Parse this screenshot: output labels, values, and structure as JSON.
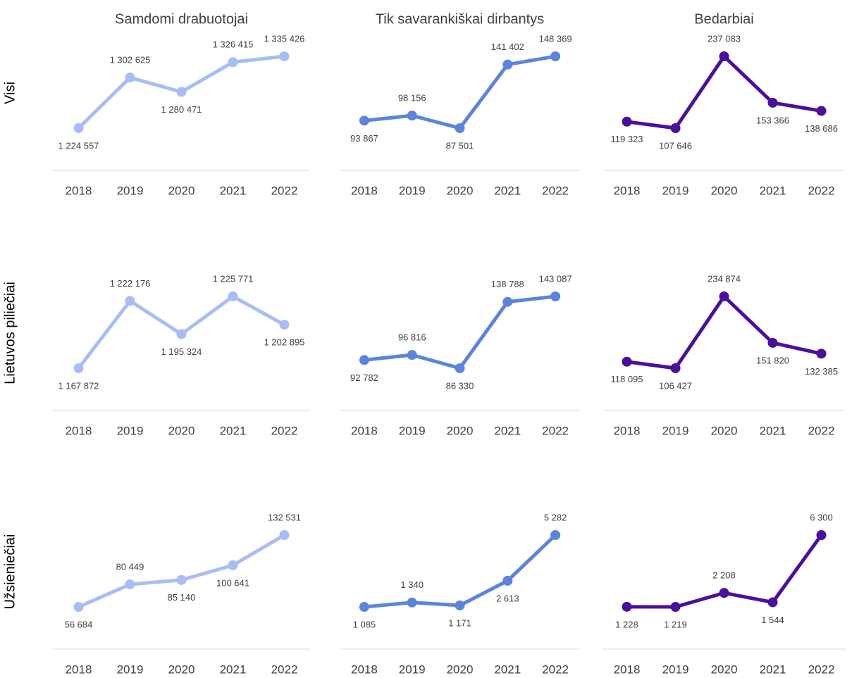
{
  "columns": [
    "Samdomi drabuotojai",
    "Tik savarankiškai dirbantys",
    "Bedarbiai"
  ],
  "rows": [
    "Visi",
    "Lietuvos piliečiai",
    "Užsieniečiai"
  ],
  "chart_data": [
    {
      "type": "line",
      "categories": [
        "2018",
        "2019",
        "2020",
        "2021",
        "2022"
      ],
      "color": "#a9bdf5",
      "values": [
        1224557,
        1302625,
        1280471,
        1326415,
        1335426
      ],
      "value_labels": [
        "1 224 557",
        "1 302 625",
        "1 280 471",
        "1 326 415",
        "1 335 426"
      ]
    },
    {
      "type": "line",
      "categories": [
        "2018",
        "2019",
        "2020",
        "2021",
        "2022"
      ],
      "color": "#5b84dc",
      "values": [
        93867,
        98156,
        87501,
        141402,
        148369
      ],
      "value_labels": [
        "93 867",
        "98 156",
        "87 501",
        "141 402",
        "148 369"
      ]
    },
    {
      "type": "line",
      "categories": [
        "2018",
        "2019",
        "2020",
        "2021",
        "2022"
      ],
      "color": "#4b0f9e",
      "values": [
        119323,
        107646,
        237083,
        153366,
        138686
      ],
      "value_labels": [
        "119 323",
        "107 646",
        "237 083",
        "153 366",
        "138 686"
      ]
    },
    {
      "type": "line",
      "categories": [
        "2018",
        "2019",
        "2020",
        "2021",
        "2022"
      ],
      "color": "#a9bdf5",
      "values": [
        1167872,
        1222176,
        1195324,
        1225771,
        1202895
      ],
      "value_labels": [
        "1 167 872",
        "1 222 176",
        "1 195 324",
        "1 225 771",
        "1 202 895"
      ]
    },
    {
      "type": "line",
      "categories": [
        "2018",
        "2019",
        "2020",
        "2021",
        "2022"
      ],
      "color": "#5b84dc",
      "values": [
        92782,
        96816,
        86330,
        138788,
        143087
      ],
      "value_labels": [
        "92 782",
        "96 816",
        "86 330",
        "138 788",
        "143 087"
      ]
    },
    {
      "type": "line",
      "categories": [
        "2018",
        "2019",
        "2020",
        "2021",
        "2022"
      ],
      "color": "#4b0f9e",
      "values": [
        118095,
        106427,
        234874,
        151820,
        132385
      ],
      "value_labels": [
        "118 095",
        "106 427",
        "234 874",
        "151 820",
        "132 385"
      ]
    },
    {
      "type": "line",
      "categories": [
        "2018",
        "2019",
        "2020",
        "2021",
        "2022"
      ],
      "color": "#a9bdf5",
      "values": [
        56684,
        80449,
        85140,
        100641,
        132531
      ],
      "value_labels": [
        "56 684",
        "80 449",
        "85 140",
        "100 641",
        "132 531"
      ]
    },
    {
      "type": "line",
      "categories": [
        "2018",
        "2019",
        "2020",
        "2021",
        "2022"
      ],
      "color": "#5b84dc",
      "values": [
        1085,
        1340,
        1171,
        2613,
        5282
      ],
      "value_labels": [
        "1 085",
        "1 340",
        "1 171",
        "2 613",
        "5 282"
      ]
    },
    {
      "type": "line",
      "categories": [
        "2018",
        "2019",
        "2020",
        "2021",
        "2022"
      ],
      "color": "#4b0f9e",
      "values": [
        1228,
        1219,
        2208,
        1544,
        6300
      ],
      "value_labels": [
        "1 228",
        "1 219",
        "2 208",
        "1 544",
        "6 300"
      ]
    }
  ]
}
